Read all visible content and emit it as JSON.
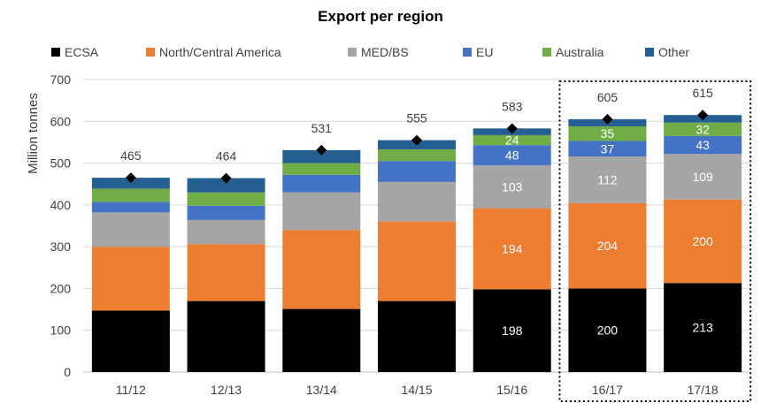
{
  "chart_data": {
    "type": "bar",
    "stacked": true,
    "title": "Export per region",
    "xlabel": "",
    "ylabel": "Million tonnes",
    "ylim": [
      0,
      700
    ],
    "yticks": [
      0,
      100,
      200,
      300,
      400,
      500,
      600,
      700
    ],
    "grid": true,
    "legend_position": "top",
    "categories": [
      "11/12",
      "12/13",
      "13/14",
      "14/15",
      "15/16",
      "16/17",
      "17/18"
    ],
    "series": [
      {
        "name": "ECSA",
        "color": "#000000",
        "values": [
          147,
          170,
          151,
          170,
          198,
          200,
          213
        ],
        "labels": [
          null,
          null,
          null,
          null,
          "198",
          "200",
          "213"
        ]
      },
      {
        "name": "North/Central America",
        "color": "#ED7D31",
        "values": [
          153,
          136,
          189,
          190,
          194,
          204,
          200
        ],
        "labels": [
          null,
          null,
          null,
          null,
          "194",
          "204",
          "200"
        ]
      },
      {
        "name": "MED/BS",
        "color": "#A5A5A5",
        "values": [
          82,
          58,
          90,
          95,
          103,
          112,
          109
        ],
        "labels": [
          null,
          null,
          null,
          null,
          "103",
          "112",
          "109"
        ]
      },
      {
        "name": "EU",
        "color": "#4472C4",
        "values": [
          25,
          34,
          42,
          50,
          48,
          37,
          43
        ],
        "labels": [
          null,
          null,
          null,
          null,
          "48",
          "37",
          "43"
        ]
      },
      {
        "name": "Australia",
        "color": "#70AD47",
        "values": [
          32,
          32,
          28,
          28,
          24,
          35,
          32
        ],
        "labels": [
          null,
          null,
          null,
          null,
          "24",
          "35",
          "32"
        ]
      },
      {
        "name": "Other",
        "color": "#255E91",
        "values": [
          26,
          34,
          31,
          22,
          16,
          17,
          18
        ],
        "labels": [
          null,
          null,
          null,
          null,
          null,
          null,
          null
        ]
      }
    ],
    "totals": [
      465,
      464,
      531,
      555,
      583,
      605,
      615
    ],
    "total_labels": [
      "465",
      "464",
      "531",
      "555",
      "583",
      "605",
      "615"
    ],
    "total_marker": "diamond",
    "highlight_categories": [
      "16/17",
      "17/18"
    ]
  }
}
